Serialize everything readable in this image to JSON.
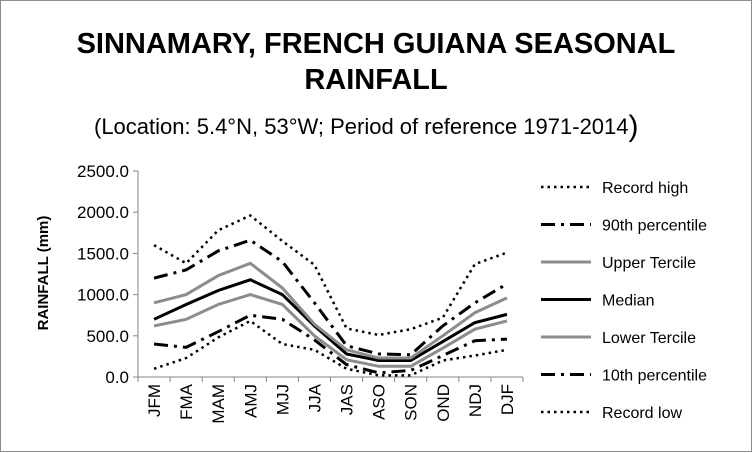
{
  "chart_data": {
    "type": "line",
    "title_line1": "SINNAMARY, FRENCH GUIANA SEASONAL",
    "title_line2": "RAINFALL",
    "subtitle": "(Location: 5.4°N, 53°W; Period of reference 1971-2014",
    "subtitle_paren": ")",
    "xlabel": "",
    "ylabel": "RAINFALL (mm)",
    "ylim": [
      0,
      2500
    ],
    "yticks": [
      0,
      500,
      1000,
      1500,
      2000,
      2500
    ],
    "ytick_labels": [
      "0.0",
      "500.0",
      "1000.0",
      "1500.0",
      "2000.0",
      "2500.0"
    ],
    "categories": [
      "JFM",
      "FMA",
      "MAM",
      "AMJ",
      "MJJ",
      "JJA",
      "JAS",
      "ASO",
      "SON",
      "OND",
      "NDJ",
      "DJF"
    ],
    "grid": false,
    "legend_position": "right",
    "series": [
      {
        "name": "Record high",
        "color": "#000000",
        "style": "dotted",
        "values": [
          1600,
          1380,
          1780,
          1960,
          1650,
          1360,
          590,
          510,
          580,
          720,
          1370,
          1510
        ]
      },
      {
        "name": "90th percentile",
        "color": "#000000",
        "style": "dashdot",
        "values": [
          1200,
          1300,
          1530,
          1660,
          1400,
          900,
          380,
          280,
          270,
          620,
          900,
          1130
        ]
      },
      {
        "name": "Upper Tercile",
        "color": "#8c8c8c",
        "style": "solid",
        "values": [
          900,
          1000,
          1230,
          1380,
          1080,
          640,
          330,
          230,
          230,
          500,
          780,
          960
        ]
      },
      {
        "name": "Median",
        "color": "#000000",
        "style": "solid",
        "values": [
          700,
          880,
          1050,
          1180,
          1000,
          620,
          280,
          200,
          200,
          430,
          660,
          760
        ]
      },
      {
        "name": "Lower Tercile",
        "color": "#8c8c8c",
        "style": "solid",
        "values": [
          620,
          700,
          880,
          1000,
          880,
          500,
          210,
          130,
          130,
          350,
          580,
          680
        ]
      },
      {
        "name": "10th percentile",
        "color": "#000000",
        "style": "dashdot",
        "values": [
          400,
          360,
          550,
          750,
          700,
          450,
          150,
          50,
          80,
          260,
          440,
          460
        ]
      },
      {
        "name": "Record low",
        "color": "#000000",
        "style": "dotted",
        "values": [
          100,
          230,
          480,
          680,
          400,
          330,
          100,
          20,
          20,
          200,
          260,
          330
        ]
      }
    ]
  }
}
